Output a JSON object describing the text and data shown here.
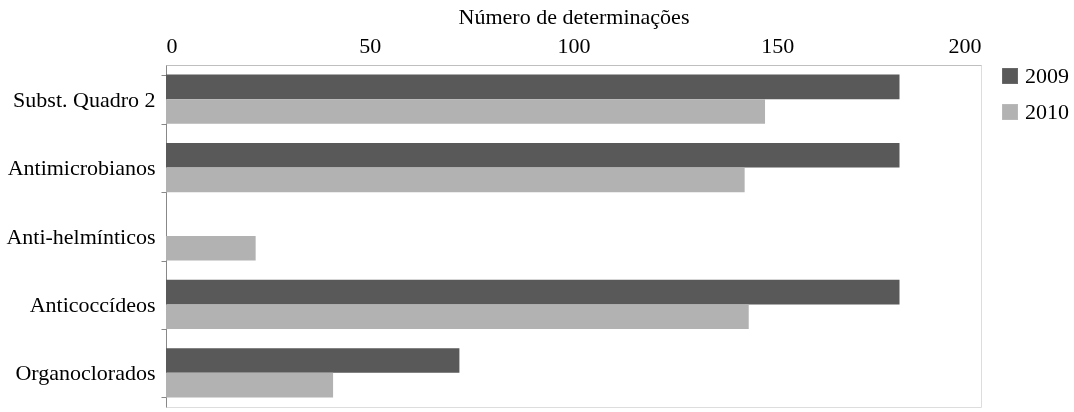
{
  "chart_data": {
    "type": "bar",
    "orientation": "horizontal",
    "xlabel": "Número de determinações",
    "categories": [
      "Subst. Quadro 2",
      "Antimicrobianos",
      "Anti-helmínticos",
      "Anticoccídeos",
      "Organoclorados"
    ],
    "series": [
      {
        "name": "2009",
        "color": "#595959",
        "values": [
          180,
          180,
          null,
          180,
          72
        ]
      },
      {
        "name": "2010",
        "color": "#b2b2b2",
        "values": [
          147,
          142,
          22,
          143,
          41
        ]
      }
    ],
    "xlim": [
      0,
      200
    ],
    "xticks": [
      0,
      50,
      100,
      150,
      200
    ],
    "grid": false,
    "legend": "right"
  }
}
